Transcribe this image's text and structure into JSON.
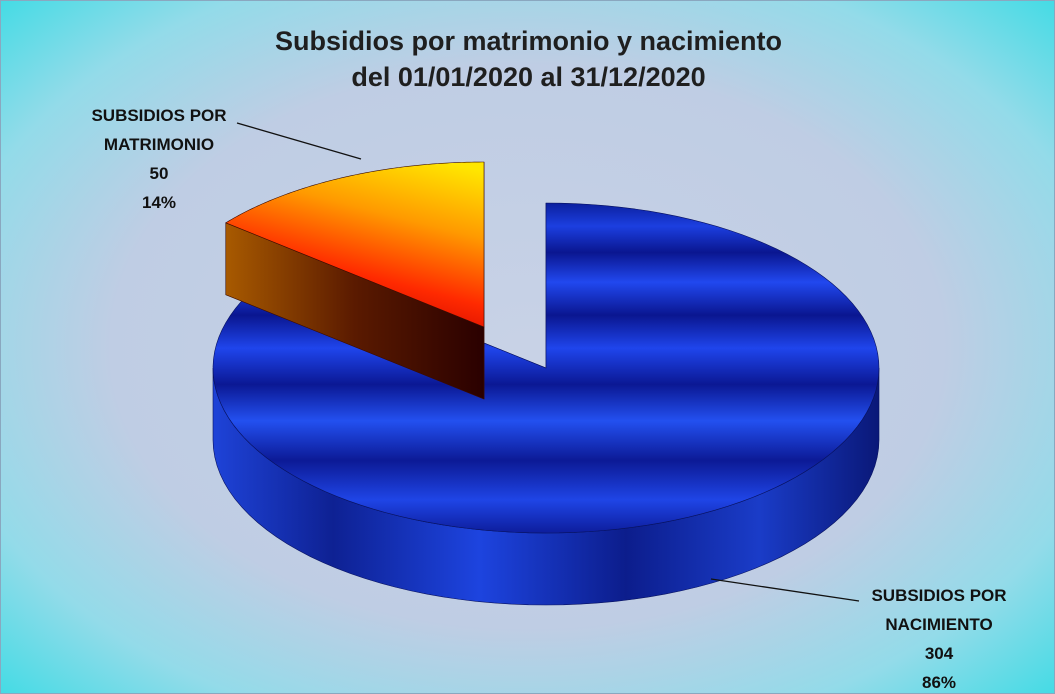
{
  "chart_data": {
    "type": "pie",
    "style": "3d-exploded",
    "title": "Subsidios por matrimonio y nacimiento",
    "subtitle": "del 01/01/2020 al 31/12/2020",
    "categories": [
      "SUBSIDIOS POR NACIMIENTO",
      "SUBSIDIOS POR MATRIMONIO"
    ],
    "values": [
      304,
      50
    ],
    "percent_labels": [
      "86%",
      "14%"
    ],
    "colors": [
      "#1c3ccf",
      "#ff6a00"
    ],
    "legend": "none",
    "slices": [
      {
        "name": "SUBSIDIOS POR NACIMIENTO",
        "label_lines": [
          "SUBSIDIOS POR",
          "NACIMIENTO"
        ],
        "value": 304,
        "percent": "86%",
        "color": "#1c3ccf"
      },
      {
        "name": "SUBSIDIOS POR MATRIMONIO",
        "label_lines": [
          "SUBSIDIOS POR",
          "MATRIMONIO"
        ],
        "value": 50,
        "percent": "14%",
        "color": "#ff6a00"
      }
    ]
  }
}
